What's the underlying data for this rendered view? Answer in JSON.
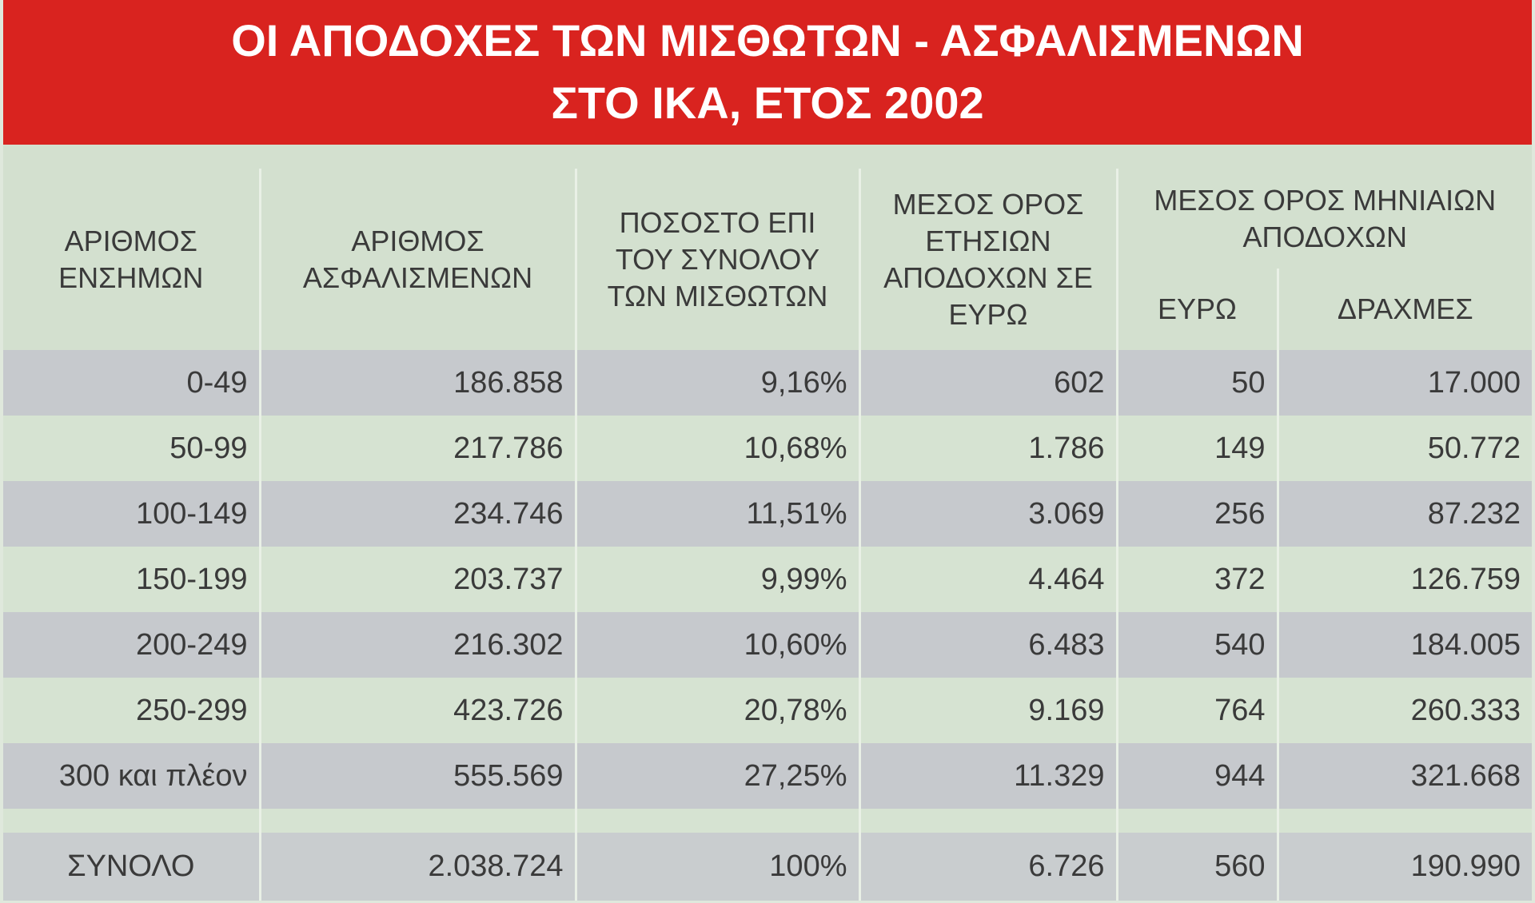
{
  "title": [
    "ΟΙ ΑΠΟΔΟΧΕΣ ΤΩΝ ΜΙΣΘΩΤΩΝ - ΑΣΦΑΛΙΣΜΕΝΩΝ",
    "ΣΤΟ ΙΚΑ, ΕΤΟΣ 2002"
  ],
  "table": {
    "headers": [
      "ΑΡΙΘΜΟΣ ΕΝΣΗΜΩΝ",
      "ΑΡΙΘΜΟΣ ΑΣΦΑΛΙΣΜΕΝΩΝ",
      "ΠΟΣΟΣΤΟ ΕΠΙ ΤΟΥ ΣΥΝΟΛΟΥ ΤΩΝ ΜΙΣΘΩΤΩΝ",
      "ΜΕΣΟΣ ΟΡΟΣ ΕΤΗΣΙΩΝ ΑΠΟΔΟΧΩΝ ΣΕ ΕΥΡΩ"
    ],
    "group_header": "ΜΕΣΟΣ ΟΡΟΣ ΜΗΝΙΑΙΩΝ ΑΠΟΔΟΧΩΝ",
    "sub_headers": [
      "ΕΥΡΩ",
      "ΔΡΑΧΜΕΣ"
    ],
    "rows": [
      [
        "0-49",
        "186.858",
        "9,16%",
        "602",
        "50",
        "17.000"
      ],
      [
        "50-99",
        "217.786",
        "10,68%",
        "1.786",
        "149",
        "50.772"
      ],
      [
        "100-149",
        "234.746",
        "11,51%",
        "3.069",
        "256",
        "87.232"
      ],
      [
        "150-199",
        "203.737",
        "9,99%",
        "4.464",
        "372",
        "126.759"
      ],
      [
        "200-249",
        "216.302",
        "10,60%",
        "6.483",
        "540",
        "184.005"
      ],
      [
        "250-299",
        "423.726",
        "20,78%",
        "9.169",
        "764",
        "260.333"
      ],
      [
        "300 και πλέον",
        "555.569",
        "27,25%",
        "11.329",
        "944",
        "321.668"
      ]
    ],
    "total": [
      "ΣΥΝΟΛΟ",
      "2.038.724",
      "100%",
      "6.726",
      "560",
      "190.990"
    ]
  }
}
